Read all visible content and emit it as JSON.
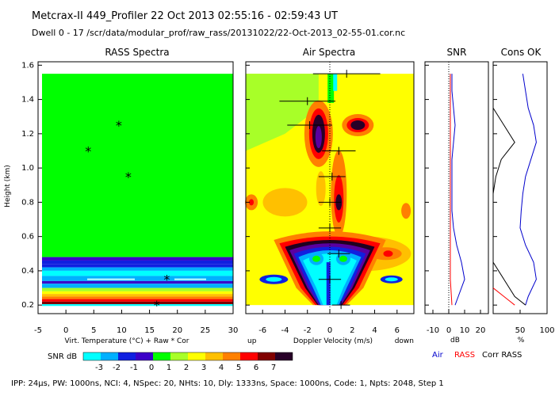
{
  "header": {
    "line1": "Metcrax-II  449_Profiler  22 Oct 2013  02:55:16 - 02:59:43 UT",
    "line2": "Dwell  0 - 17   /scr/data/modular_prof/raw_rass/20131022/22-Oct-2013_02-55-01.cor.nc"
  },
  "footer": "IPP: 24μs, PW: 1000ns, NCI: 4, NSpec: 20, NHts: 10, Dly: 1333ns, Space: 1000ns, Code: 1, Npts: 2048, Step 1",
  "colors": {
    "scale": [
      "#00ffff",
      "#00b0ff",
      "#1020e0",
      "#3c00c8",
      "#00ff00",
      "#a8ff28",
      "#ffff00",
      "#ffc000",
      "#ff8000",
      "#ff0000",
      "#800000",
      "#280028",
      "#200020"
    ],
    "air_line": "#0000cc",
    "rass_line": "#ff0000",
    "corr_rass_line": "#000000"
  },
  "chart_data": [
    {
      "type": "heatmap",
      "title": "RASS Spectra",
      "xlabel": "Virt. Temperature (°C)  + Raw  * Cor",
      "ylabel": "Height (km)",
      "xlim": [
        -5,
        30
      ],
      "ylim": [
        0.15,
        1.62
      ],
      "xticks": [
        "-5",
        "0",
        "5",
        "10",
        "15",
        "20",
        "25",
        "30"
      ],
      "yticks": [
        "0.2",
        "0.4",
        "0.6",
        "0.8",
        "1.0",
        "1.2",
        "1.4",
        "1.6"
      ],
      "cor_points": [
        {
          "x": 9.5,
          "y": 1.25
        },
        {
          "x": 4.0,
          "y": 1.1
        },
        {
          "x": 11.2,
          "y": 0.95
        },
        {
          "x": 18.1,
          "y": 0.35
        },
        {
          "x": 16.3,
          "y": 0.2
        }
      ]
    },
    {
      "type": "heatmap",
      "title": "Air Spectra",
      "xlabel": "Doppler Velocity (m/s)",
      "xlabel_left": "up",
      "xlabel_right": "down",
      "xlim": [
        -7.5,
        7.5
      ],
      "ylim": [
        0.15,
        1.62
      ],
      "xticks": [
        "-6",
        "-4",
        "-2",
        "0",
        "2",
        "4",
        "6"
      ],
      "points": [
        {
          "x": 1.5,
          "y": 1.55,
          "err": 3.0
        },
        {
          "x": -2.0,
          "y": 1.39,
          "err": 2.5
        },
        {
          "x": -1.8,
          "y": 1.25,
          "err": 2.0
        },
        {
          "x": 0.8,
          "y": 1.1,
          "err": 1.5
        },
        {
          "x": 0.2,
          "y": 0.95,
          "err": 1.2
        },
        {
          "x": 0.0,
          "y": 0.8,
          "err": 1.0
        },
        {
          "x": 0.0,
          "y": 0.65,
          "err": 1.0
        },
        {
          "x": 0.8,
          "y": 0.5,
          "err": 1.0
        },
        {
          "x": 0.0,
          "y": 0.35,
          "err": 1.0
        },
        {
          "x": 1.0,
          "y": 0.2,
          "err": 0.8
        }
      ]
    },
    {
      "type": "line",
      "title": "SNR",
      "xlabel": "dB",
      "xlim": [
        -15,
        25
      ],
      "xticks": [
        "-10",
        "0",
        "10",
        "20"
      ],
      "ylim": [
        0.15,
        1.62
      ],
      "series": [
        {
          "key": "air",
          "y": [
            1.55,
            1.45,
            1.35,
            1.25,
            1.15,
            1.05,
            0.95,
            0.85,
            0.75,
            0.65,
            0.55,
            0.45,
            0.35,
            0.25,
            0.2
          ],
          "x": [
            2,
            2,
            3,
            4,
            3,
            2,
            2,
            2,
            2,
            3,
            5,
            8,
            10,
            6,
            4
          ]
        },
        {
          "key": "rass",
          "y": [
            1.55,
            1.35,
            1.15,
            0.95,
            0.75,
            0.55,
            0.35,
            0.2
          ],
          "x": [
            1,
            1,
            1,
            1,
            1,
            1,
            1,
            2
          ]
        }
      ]
    },
    {
      "type": "line",
      "title": "Cons OK",
      "xlabel": "%",
      "xlim": [
        0,
        100
      ],
      "xticks": [
        "50",
        "100"
      ],
      "ylim": [
        0.15,
        1.62
      ],
      "series": [
        {
          "key": "air",
          "y": [
            1.55,
            1.45,
            1.35,
            1.25,
            1.15,
            1.05,
            0.95,
            0.85,
            0.75,
            0.65,
            0.55,
            0.45,
            0.35,
            0.25,
            0.2
          ],
          "x": [
            55,
            60,
            65,
            75,
            80,
            70,
            60,
            55,
            52,
            50,
            60,
            75,
            80,
            65,
            60
          ]
        },
        {
          "key": "corr",
          "y": [
            1.35,
            1.25,
            1.15,
            1.05,
            0.95,
            0.85,
            0.75,
            0.65,
            0.55,
            0.45,
            0.35,
            0.25,
            0.2
          ],
          "x": [
            0,
            20,
            40,
            15,
            5,
            0,
            0,
            0,
            0,
            0,
            20,
            40,
            60
          ]
        },
        {
          "key": "rass",
          "y": [
            0.3,
            0.25,
            0.2
          ],
          "x": [
            0,
            20,
            40
          ]
        }
      ]
    }
  ],
  "legend": {
    "snr_label": "SNR dB",
    "ticks": [
      "-3",
      "-2",
      "-1",
      "0",
      "1",
      "2",
      "3",
      "4",
      "5",
      "6",
      "7"
    ],
    "air": "Air",
    "rass": "RASS",
    "corr": "Corr RASS"
  }
}
